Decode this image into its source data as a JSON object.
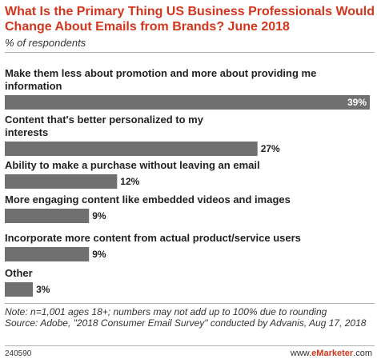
{
  "header": {
    "title": "What Is the Primary Thing US Business Professionals Would Change About Emails from Brands? June 2018",
    "subtitle": "% of respondents"
  },
  "chart_data": {
    "type": "bar",
    "orientation": "horizontal",
    "categories": [
      "Make them less about promotion and more about providing me information",
      "Content that's better personalized to my interests",
      "Ability to make a purchase without leaving an email",
      "More engaging content like embedded videos and images",
      "Incorporate more content from actual product/service users",
      "Other"
    ],
    "label_lines": [
      [
        "Make them less about promotion and more about providing me",
        "information"
      ],
      [
        "Content that's better personalized to my",
        "interests"
      ],
      [
        "Ability to make a purchase without leaving an email"
      ],
      [
        "More engaging content like embedded videos and images"
      ],
      [
        "Incorporate more content from actual product/service users"
      ],
      [
        "Other"
      ]
    ],
    "values": [
      39,
      27,
      12,
      9,
      9,
      3
    ],
    "value_labels": [
      "39%",
      "27%",
      "12%",
      "9%",
      "9%",
      "3%"
    ],
    "xlim": [
      0,
      39
    ],
    "colors": {
      "bar": "#707070",
      "value_inside": "#ffffff",
      "value_outside": "#222222"
    }
  },
  "notes": {
    "note": "Note: n=1,001 ages 18+; numbers may not add up to 100% due to rounding",
    "source": "Source: Adobe, \"2018 Consumer Email Survey\" conducted by Advanis, Aug 17, 2018"
  },
  "footer": {
    "id": "240590",
    "brand_prefix": "www.",
    "brand_name": "eMarketer",
    "brand_suffix": ".com"
  },
  "colors": {
    "title": "#d4351c",
    "bar": "#707070",
    "rule": "#b0b0b0"
  }
}
